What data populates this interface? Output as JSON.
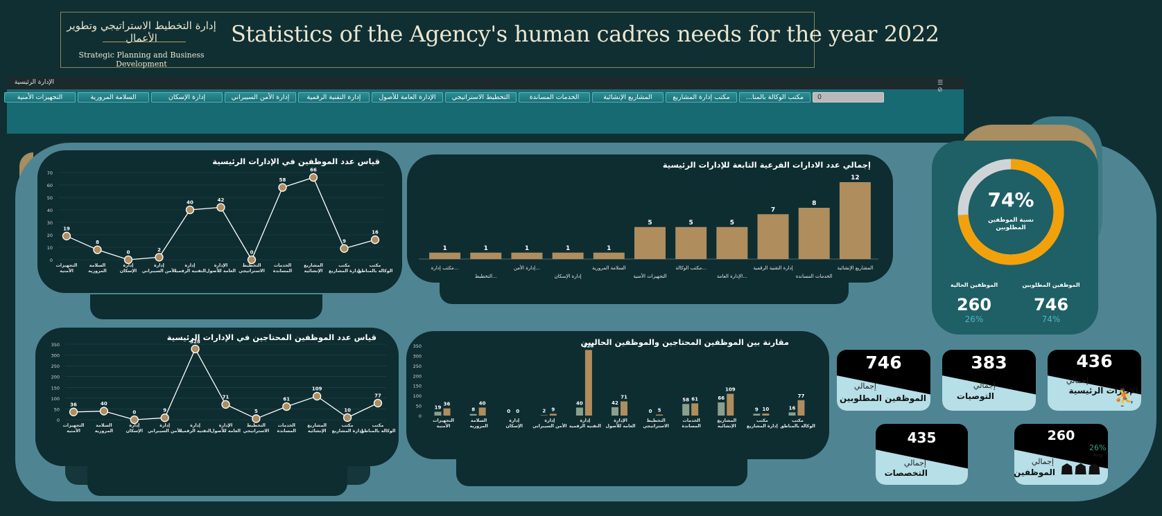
{
  "header": {
    "logo_ar": "إدارة التخطيط الاستراتيجي وتطوير الأعمال",
    "logo_en": "Strategic Planning and Business Development",
    "title": "Statistics of the Agency's human cadres needs for the year 2022"
  },
  "slicer": {
    "title": "الإدارة الرئيسية",
    "items": [
      "مكتب الوكالة بالمنا...",
      "مكتب إدارة المشاريع",
      "المشاريع الإنشائية",
      "الخدمات المساندة",
      "التخطيط الاستراتيجي",
      "الإدارة العامة للأصول",
      "إدارة التقنية الرقمية",
      "إدارة الأمن السيبراني",
      "إدارة الإسكان",
      "السلامة المرورية",
      "التجهيزات الأمنية"
    ],
    "zero_item": "0"
  },
  "chart_data": [
    {
      "type": "line",
      "title": "قياس عدد الموظفين في الإدارات الرئيسية",
      "categories": [
        "مكتب الوكالة بالمناطق",
        "مكتب إدارة المشاريع",
        "المشاريع الإنشائية",
        "الخدمات المساندة",
        "التخطيط الاستراتيجي",
        "الإدارة العامة للأصول",
        "إدارة التقنية الرقمية",
        "إدارة الأمن السيبراني",
        "إدارة الإسكان",
        "السلامة المرورية",
        "التجهيزات الأمنية"
      ],
      "values": [
        16,
        9,
        66,
        58,
        0,
        42,
        40,
        2,
        0,
        8,
        19
      ],
      "yticks": [
        "0",
        "10",
        "20",
        "30",
        "40",
        "50",
        "60",
        "70"
      ],
      "ylim": [
        0,
        70
      ]
    },
    {
      "type": "bar",
      "title": "إجمالي عدد الادارات الفرعية التابعة للإدارات الرئيسية",
      "categories": [
        "المشاريع الإنشائية",
        "الخدمات المساندة",
        "إدارة التقنية الرقمية",
        "الإدارة العامة...",
        "مكتب الوكالة...",
        "التجهيزات الأمنية",
        "السلامة المرورية",
        "إدارة الإسكان",
        "إدارة الأمن...",
        "التخطيط...",
        "مكتب إدارة..."
      ],
      "values": [
        12,
        8,
        7,
        5,
        5,
        5,
        1,
        1,
        1,
        1,
        1
      ]
    },
    {
      "type": "line",
      "title": "قياس عدد الموظفين المحتاجين  في الإدارات الرئيسية",
      "categories": [
        "مكتب الوكالة بالمناطق",
        "مكتب إدارة المشاريع",
        "المشاريع الإنشائية",
        "الخدمات المساندة",
        "التخطيط الاستراتيجي",
        "الإدارة العامة للأصول",
        "إدارة التقنية الرقمية",
        "إدارة الأمن السيبراني",
        "إدارة الإسكان",
        "السلامة المرورية",
        "التجهيزات الأمنية"
      ],
      "values": [
        77,
        10,
        109,
        61,
        5,
        71,
        328,
        9,
        0,
        40,
        36
      ],
      "yticks": [
        "0",
        "50",
        "100",
        "150",
        "200",
        "250",
        "300",
        "350"
      ],
      "ylim": [
        0,
        350
      ]
    },
    {
      "type": "bar",
      "title": "مقارنة بين الموظفين المحتاجين والموظفين الحاليين",
      "categories": [
        "مكتب الوكالة بالمناطق",
        "مكتب إدارة المشاريع",
        "المشاريع الإنشائية",
        "الخدمات المساندة",
        "التخطيط الاستراتيجي",
        "الإدارة العامة للأصول",
        "إدارة التقنية الرقمية",
        "إدارة الأمن السيبراني",
        "إدارة الإسكان",
        "السلامة المرورية",
        "التجهيزات الأمنية"
      ],
      "series": [
        {
          "values": [
            16,
            9,
            66,
            58,
            0,
            42,
            40,
            2,
            0,
            8,
            19
          ]
        },
        {
          "values": [
            77,
            10,
            109,
            61,
            5,
            71,
            328,
            9,
            0,
            40,
            36
          ]
        }
      ],
      "yticks": [
        "0",
        "50",
        "100",
        "150",
        "200",
        "250",
        "300",
        "350"
      ],
      "ylim": [
        0,
        350
      ]
    }
  ],
  "gauge": {
    "value": 0.74,
    "percent_text": "74%",
    "label": "نسبة الموظفين المطلوبين",
    "required_label": "الموظفين المطلوبين",
    "required_value": "746",
    "required_pct": "74%",
    "current_label": "الموظفين الحالية",
    "current_value": "260",
    "current_pct": "26%",
    "colors": {
      "ring": "#f3a10a",
      "track": "#cfd5d6"
    }
  },
  "cards": {
    "main_depts": {
      "value": "436",
      "label1": "إجمالي",
      "label2": "الإدارات الرئيسية"
    },
    "recommendations": {
      "value": "383",
      "label1": "إجمالي",
      "label2": "التوصيات"
    },
    "required_emps": {
      "value": "746",
      "label1": "إجمالي",
      "label2": "الموظفين المطلوبين"
    },
    "employees": {
      "value": "260",
      "label1": "إجمالي",
      "label2": "الموظفين",
      "avg_pct": "26%",
      "avg_label": "Avg."
    },
    "specializations": {
      "value": "435",
      "label1": "إجمالي",
      "label2": "التخصصات"
    }
  }
}
